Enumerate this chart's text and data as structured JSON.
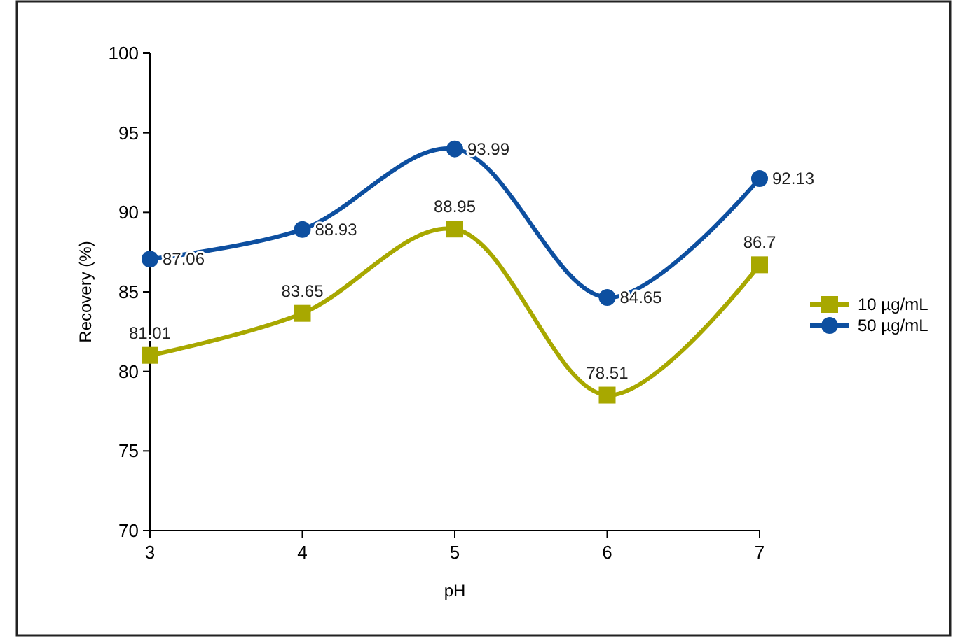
{
  "chart_data": {
    "type": "line",
    "xlabel": "pH",
    "ylabel": "Recovery (%)",
    "x": [
      3,
      4,
      5,
      6,
      7
    ],
    "series": [
      {
        "name": "10 µg/mL",
        "color": "#a8a800",
        "marker": "square",
        "values": [
          81.01,
          83.65,
          88.95,
          78.51,
          86.7
        ]
      },
      {
        "name": "50 µg/mL",
        "color": "#0d4fa0",
        "marker": "circle",
        "values": [
          87.06,
          88.93,
          93.99,
          84.65,
          92.13
        ]
      }
    ],
    "xlim": [
      3,
      7
    ],
    "xticks": [
      3,
      4,
      5,
      6,
      7
    ],
    "ylim": [
      70,
      100
    ],
    "yticks": [
      70,
      75,
      80,
      85,
      90,
      95,
      100
    ],
    "data_labels": true,
    "legend": "right",
    "grid": false
  }
}
